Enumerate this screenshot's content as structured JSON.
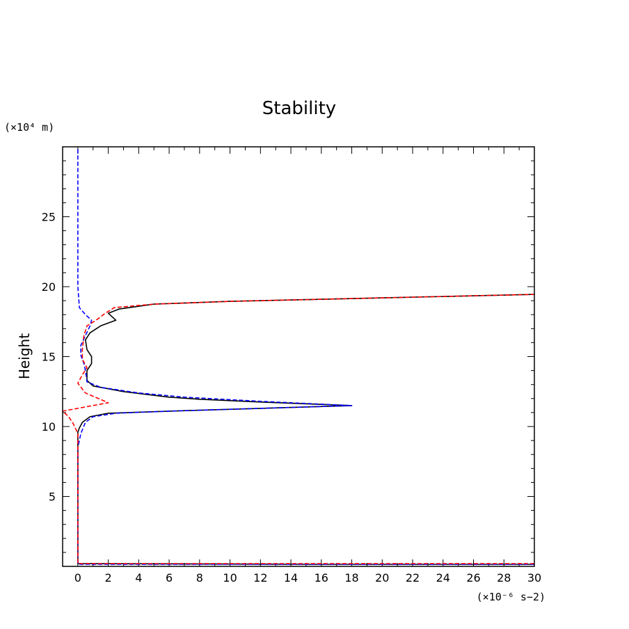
{
  "chart_data": {
    "type": "line",
    "title": "Stability",
    "xlabel": "",
    "ylabel": "Height",
    "x_unit_label": "(×10⁻⁶ s−2)",
    "y_unit_label": "(×10⁴ m)",
    "xlim": [
      -1,
      30
    ],
    "ylim": [
      0,
      30
    ],
    "x_ticks": [
      0,
      2,
      4,
      6,
      8,
      10,
      12,
      14,
      16,
      18,
      20,
      22,
      24,
      26,
      28,
      30
    ],
    "y_ticks": [
      5,
      10,
      15,
      20,
      25
    ],
    "grid": false,
    "series": [
      {
        "name": "solid",
        "color": "#000000",
        "dash": "solid",
        "points": [
          [
            30,
            0.15
          ],
          [
            15,
            0.15
          ],
          [
            0,
            0.2
          ],
          [
            0,
            5
          ],
          [
            0,
            9.6
          ],
          [
            0.1,
            9.9
          ],
          [
            0.3,
            10.3
          ],
          [
            0.8,
            10.7
          ],
          [
            2,
            10.95
          ],
          [
            6,
            11.1
          ],
          [
            12,
            11.3
          ],
          [
            18,
            11.5
          ],
          [
            12,
            11.75
          ],
          [
            8,
            11.95
          ],
          [
            6,
            12.1
          ],
          [
            3,
            12.5
          ],
          [
            1,
            12.9
          ],
          [
            0.6,
            13.3
          ],
          [
            0.6,
            14
          ],
          [
            0.9,
            14.5
          ],
          [
            0.9,
            15
          ],
          [
            0.6,
            15.5
          ],
          [
            0.5,
            16.2
          ],
          [
            0.8,
            16.7
          ],
          [
            1.5,
            17.2
          ],
          [
            2.5,
            17.6
          ],
          [
            2,
            18.1
          ],
          [
            2.7,
            18.4
          ],
          [
            5,
            18.75
          ],
          [
            10,
            18.95
          ],
          [
            20,
            19.2
          ],
          [
            30,
            19.45
          ]
        ]
      },
      {
        "name": "blue dashed",
        "color": "#0000ff",
        "dash": "dashed",
        "points": [
          [
            30,
            0.15
          ],
          [
            15,
            0.15
          ],
          [
            0,
            0.15
          ],
          [
            0,
            8.5
          ],
          [
            0.2,
            9.5
          ],
          [
            0.5,
            10.3
          ],
          [
            1,
            10.7
          ],
          [
            2.5,
            10.95
          ],
          [
            6,
            11.1
          ],
          [
            12,
            11.3
          ],
          [
            18,
            11.5
          ],
          [
            12,
            11.8
          ],
          [
            7,
            12.1
          ],
          [
            4,
            12.4
          ],
          [
            1.5,
            12.8
          ],
          [
            0.6,
            13.2
          ],
          [
            0.5,
            14
          ],
          [
            0.4,
            14.5
          ],
          [
            0.2,
            15.1
          ],
          [
            0.2,
            15.8
          ],
          [
            0.5,
            16.5
          ],
          [
            0.8,
            17.2
          ],
          [
            0.9,
            17.6
          ],
          [
            0.5,
            18
          ],
          [
            0.1,
            18.5
          ],
          [
            0,
            20
          ],
          [
            0,
            30
          ]
        ]
      },
      {
        "name": "red dashed",
        "color": "#ff0000",
        "dash": "dashed",
        "points": [
          [
            30,
            0.2
          ],
          [
            15,
            0.2
          ],
          [
            0,
            0.2
          ],
          [
            0,
            9.5
          ],
          [
            -0.3,
            10.2
          ],
          [
            -0.6,
            10.7
          ],
          [
            -1,
            11.1
          ],
          [
            2,
            11.7
          ],
          [
            0.5,
            12.4
          ],
          [
            0,
            13.1
          ],
          [
            0.3,
            13.7
          ],
          [
            0.6,
            14.2
          ],
          [
            0.3,
            14.8
          ],
          [
            0.3,
            15.5
          ],
          [
            0.4,
            16.5
          ],
          [
            0.6,
            17.2
          ],
          [
            1.2,
            17.6
          ],
          [
            1.8,
            18.1
          ],
          [
            2.4,
            18.5
          ],
          [
            5,
            18.75
          ],
          [
            10,
            18.95
          ],
          [
            20,
            19.2
          ],
          [
            30,
            19.45
          ]
        ]
      }
    ]
  }
}
